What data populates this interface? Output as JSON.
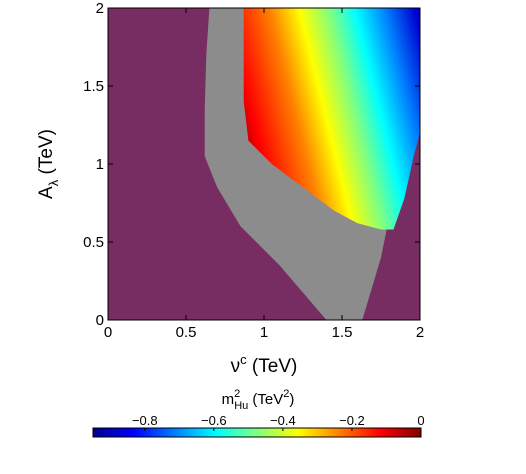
{
  "chart_data": {
    "type": "heatmap",
    "xlabel": {
      "main": "ν",
      "sup": "c",
      "unit": " (TeV)"
    },
    "ylabel": {
      "main": "A",
      "sub": "λ",
      "unit": " (TeV)"
    },
    "xlim": [
      0,
      2
    ],
    "ylim": [
      0,
      2
    ],
    "x_ticks": [
      0,
      0.5,
      1,
      1.5,
      2
    ],
    "x_tick_labels": [
      "0",
      "0.5",
      "1",
      "1.5",
      "2"
    ],
    "y_ticks": [
      0,
      0.5,
      1,
      1.5,
      2
    ],
    "y_tick_labels": [
      "0",
      "0.5",
      "1",
      "1.5",
      "2"
    ],
    "colorbar": {
      "label": {
        "main": "m",
        "sup": "2",
        "sub": "Hu",
        "unit_open": " (TeV",
        "unit_sup": "2",
        "unit_close": ")"
      },
      "range": [
        -0.95,
        0
      ],
      "ticks": [
        -0.8,
        -0.6,
        -0.4,
        -0.2,
        0
      ],
      "tick_labels": [
        "−0.8",
        "−0.6",
        "−0.4",
        "−0.2",
        "0"
      ],
      "colormap": "jet"
    },
    "colors": {
      "excluded_region": "#772d62",
      "gray_region": "#8c8c8c"
    },
    "regions": {
      "gray_boundary": [
        [
          0.65,
          2
        ],
        [
          0.63,
          1.7
        ],
        [
          0.62,
          1.35
        ],
        [
          0.62,
          1.05
        ],
        [
          0.7,
          0.85
        ],
        [
          0.85,
          0.6
        ],
        [
          1.1,
          0.35
        ],
        [
          1.4,
          0
        ],
        [
          1.63,
          0
        ],
        [
          1.75,
          0.4
        ],
        [
          1.85,
          0.9
        ],
        [
          2,
          1.2
        ],
        [
          2,
          2
        ]
      ],
      "colored_boundary": [
        [
          0.87,
          2
        ],
        [
          0.87,
          1.4
        ],
        [
          0.9,
          1.15
        ],
        [
          1.05,
          1.0
        ],
        [
          1.25,
          0.85
        ],
        [
          1.45,
          0.7
        ],
        [
          1.6,
          0.62
        ],
        [
          1.75,
          0.58
        ],
        [
          1.83,
          0.58
        ],
        [
          1.9,
          0.78
        ],
        [
          1.96,
          1.05
        ],
        [
          2,
          1.2
        ],
        [
          2,
          2
        ]
      ],
      "value_gradient": [
        {
          "x": 0.87,
          "value": 0
        },
        {
          "x": 1.43,
          "value": -0.4
        },
        {
          "x": 2.0,
          "value": -0.9
        }
      ]
    }
  }
}
